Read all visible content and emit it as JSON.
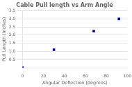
{
  "chart_data": {
    "type": "scatter",
    "title": "Cable Pull length vs Arm Angle",
    "xlabel": "Angular Deflection (degrees)",
    "ylabel": "Pull Length (Inches)",
    "x": [
      0,
      30,
      68,
      92
    ],
    "y": [
      0.0,
      1.1,
      2.25,
      3.0
    ],
    "xlim": [
      0,
      100
    ],
    "ylim": [
      0,
      3.5
    ],
    "xticks": [
      0,
      20,
      40,
      60,
      80,
      100
    ],
    "yticks": [
      0.5,
      {
        "value": 1,
        "label": "1.0"
      },
      1.5,
      {
        "value": 2,
        "label": "2.0"
      },
      2.5,
      {
        "value": 3,
        "label": "3.0"
      },
      3.5
    ],
    "marker": "square",
    "color": "#00008B",
    "grid": "y"
  }
}
